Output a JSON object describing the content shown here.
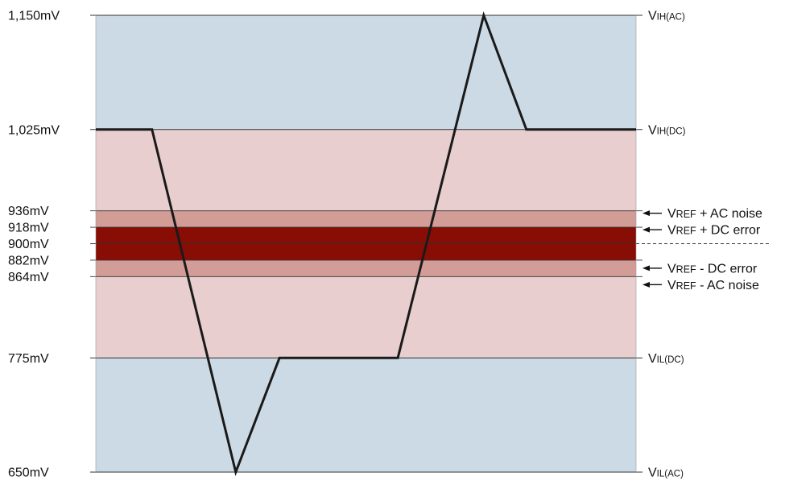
{
  "colors": {
    "outer_band": "#ccdae5",
    "dc_band": "#e8cece",
    "ac_noise_band": "#d29c97",
    "dc_error_band": "#880d05",
    "waveform": "#1a1a1a",
    "gridline": "#333333"
  },
  "chart_data": {
    "type": "line",
    "y_unit": "mV",
    "ylim": [
      650,
      1150
    ],
    "y_ticks": [
      {
        "value": 1150,
        "label": "1,150mV"
      },
      {
        "value": 1025,
        "label": "1,025mV"
      },
      {
        "value": 936,
        "label": "936mV"
      },
      {
        "value": 918,
        "label": "918mV"
      },
      {
        "value": 900,
        "label": "900mV"
      },
      {
        "value": 882,
        "label": "882mV"
      },
      {
        "value": 864,
        "label": "864mV"
      },
      {
        "value": 775,
        "label": "775mV"
      },
      {
        "value": 650,
        "label": "650mV"
      }
    ],
    "threshold_labels": [
      {
        "value": 1150,
        "main": "V",
        "sub": "IH(AC)"
      },
      {
        "value": 1025,
        "main": "V",
        "sub": "IH(DC)"
      },
      {
        "value": 775,
        "main": "V",
        "sub": "IL(DC)"
      },
      {
        "value": 650,
        "main": "V",
        "sub": "IL(AC)"
      }
    ],
    "vref_labels": [
      {
        "value": 936,
        "main": "V",
        "sc": "REF",
        "rest": " + AC noise"
      },
      {
        "value": 918,
        "main": "V",
        "sc": "REF",
        "rest": " + DC error"
      },
      {
        "value": 882,
        "main": "V",
        "sc": "REF",
        "rest": " - DC error"
      },
      {
        "value": 864,
        "main": "V",
        "sc": "REF",
        "rest": " - AC noise"
      }
    ],
    "bands": [
      {
        "from": 1025,
        "to": 1150,
        "kind": "outer_band"
      },
      {
        "from": 936,
        "to": 1025,
        "kind": "dc_band"
      },
      {
        "from": 918,
        "to": 936,
        "kind": "ac_noise_band"
      },
      {
        "from": 882,
        "to": 918,
        "kind": "dc_error_band"
      },
      {
        "from": 864,
        "to": 882,
        "kind": "ac_noise_band"
      },
      {
        "from": 775,
        "to": 864,
        "kind": "dc_band"
      },
      {
        "from": 650,
        "to": 775,
        "kind": "outer_band"
      }
    ],
    "reference_level": 900,
    "x_range": [
      0,
      1
    ],
    "waveform": [
      {
        "x": 0.0,
        "y": 1025
      },
      {
        "x": 0.104,
        "y": 1025
      },
      {
        "x": 0.259,
        "y": 650
      },
      {
        "x": 0.34,
        "y": 775
      },
      {
        "x": 0.559,
        "y": 775
      },
      {
        "x": 0.718,
        "y": 1150
      },
      {
        "x": 0.797,
        "y": 1025
      },
      {
        "x": 1.0,
        "y": 1025
      }
    ]
  }
}
